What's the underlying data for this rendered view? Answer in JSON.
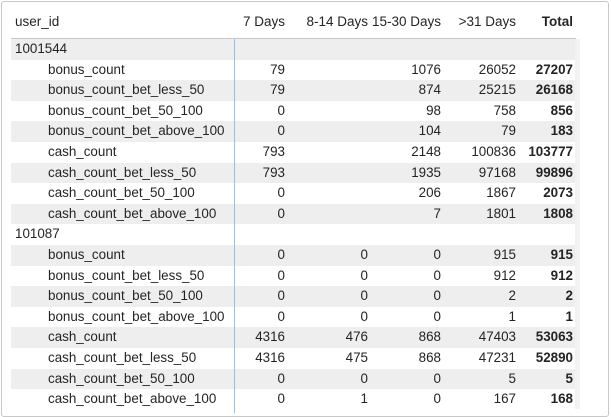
{
  "columns": [
    "user_id",
    "7 Days",
    "8-14 Days",
    "15-30 Days",
    ">31 Days",
    "Total"
  ],
  "groups": [
    {
      "user_id": "1001544",
      "rows": [
        {
          "label": "bonus_count",
          "d7": "79",
          "d8_14": "",
          "d15_30": "1076",
          "d31": "26052",
          "total": "27207"
        },
        {
          "label": "bonus_count_bet_less_50",
          "d7": "79",
          "d8_14": "",
          "d15_30": "874",
          "d31": "25215",
          "total": "26168"
        },
        {
          "label": "bonus_count_bet_50_100",
          "d7": "0",
          "d8_14": "",
          "d15_30": "98",
          "d31": "758",
          "total": "856"
        },
        {
          "label": "bonus_count_bet_above_100",
          "d7": "0",
          "d8_14": "",
          "d15_30": "104",
          "d31": "79",
          "total": "183"
        },
        {
          "label": "cash_count",
          "d7": "793",
          "d8_14": "",
          "d15_30": "2148",
          "d31": "100836",
          "total": "103777"
        },
        {
          "label": "cash_count_bet_less_50",
          "d7": "793",
          "d8_14": "",
          "d15_30": "1935",
          "d31": "97168",
          "total": "99896"
        },
        {
          "label": "cash_count_bet_50_100",
          "d7": "0",
          "d8_14": "",
          "d15_30": "206",
          "d31": "1867",
          "total": "2073"
        },
        {
          "label": "cash_count_bet_above_100",
          "d7": "0",
          "d8_14": "",
          "d15_30": "7",
          "d31": "1801",
          "total": "1808"
        }
      ]
    },
    {
      "user_id": "101087",
      "rows": [
        {
          "label": "bonus_count",
          "d7": "0",
          "d8_14": "0",
          "d15_30": "0",
          "d31": "915",
          "total": "915"
        },
        {
          "label": "bonus_count_bet_less_50",
          "d7": "0",
          "d8_14": "0",
          "d15_30": "0",
          "d31": "912",
          "total": "912"
        },
        {
          "label": "bonus_count_bet_50_100",
          "d7": "0",
          "d8_14": "0",
          "d15_30": "0",
          "d31": "2",
          "total": "2"
        },
        {
          "label": "bonus_count_bet_above_100",
          "d7": "0",
          "d8_14": "0",
          "d15_30": "0",
          "d31": "1",
          "total": "1"
        },
        {
          "label": "cash_count",
          "d7": "4316",
          "d8_14": "476",
          "d15_30": "868",
          "d31": "47403",
          "total": "53063"
        },
        {
          "label": "cash_count_bet_less_50",
          "d7": "4316",
          "d8_14": "475",
          "d15_30": "868",
          "d31": "47231",
          "total": "52890"
        },
        {
          "label": "cash_count_bet_50_100",
          "d7": "0",
          "d8_14": "0",
          "d15_30": "0",
          "d31": "5",
          "total": "5"
        },
        {
          "label": "cash_count_bet_above_100",
          "d7": "0",
          "d8_14": "1",
          "d15_30": "0",
          "d31": "167",
          "total": "168"
        }
      ]
    }
  ],
  "colors": {
    "row_shade": "#eeeeee",
    "divider": "#8fc3e8",
    "border": "#c8c8c8"
  }
}
